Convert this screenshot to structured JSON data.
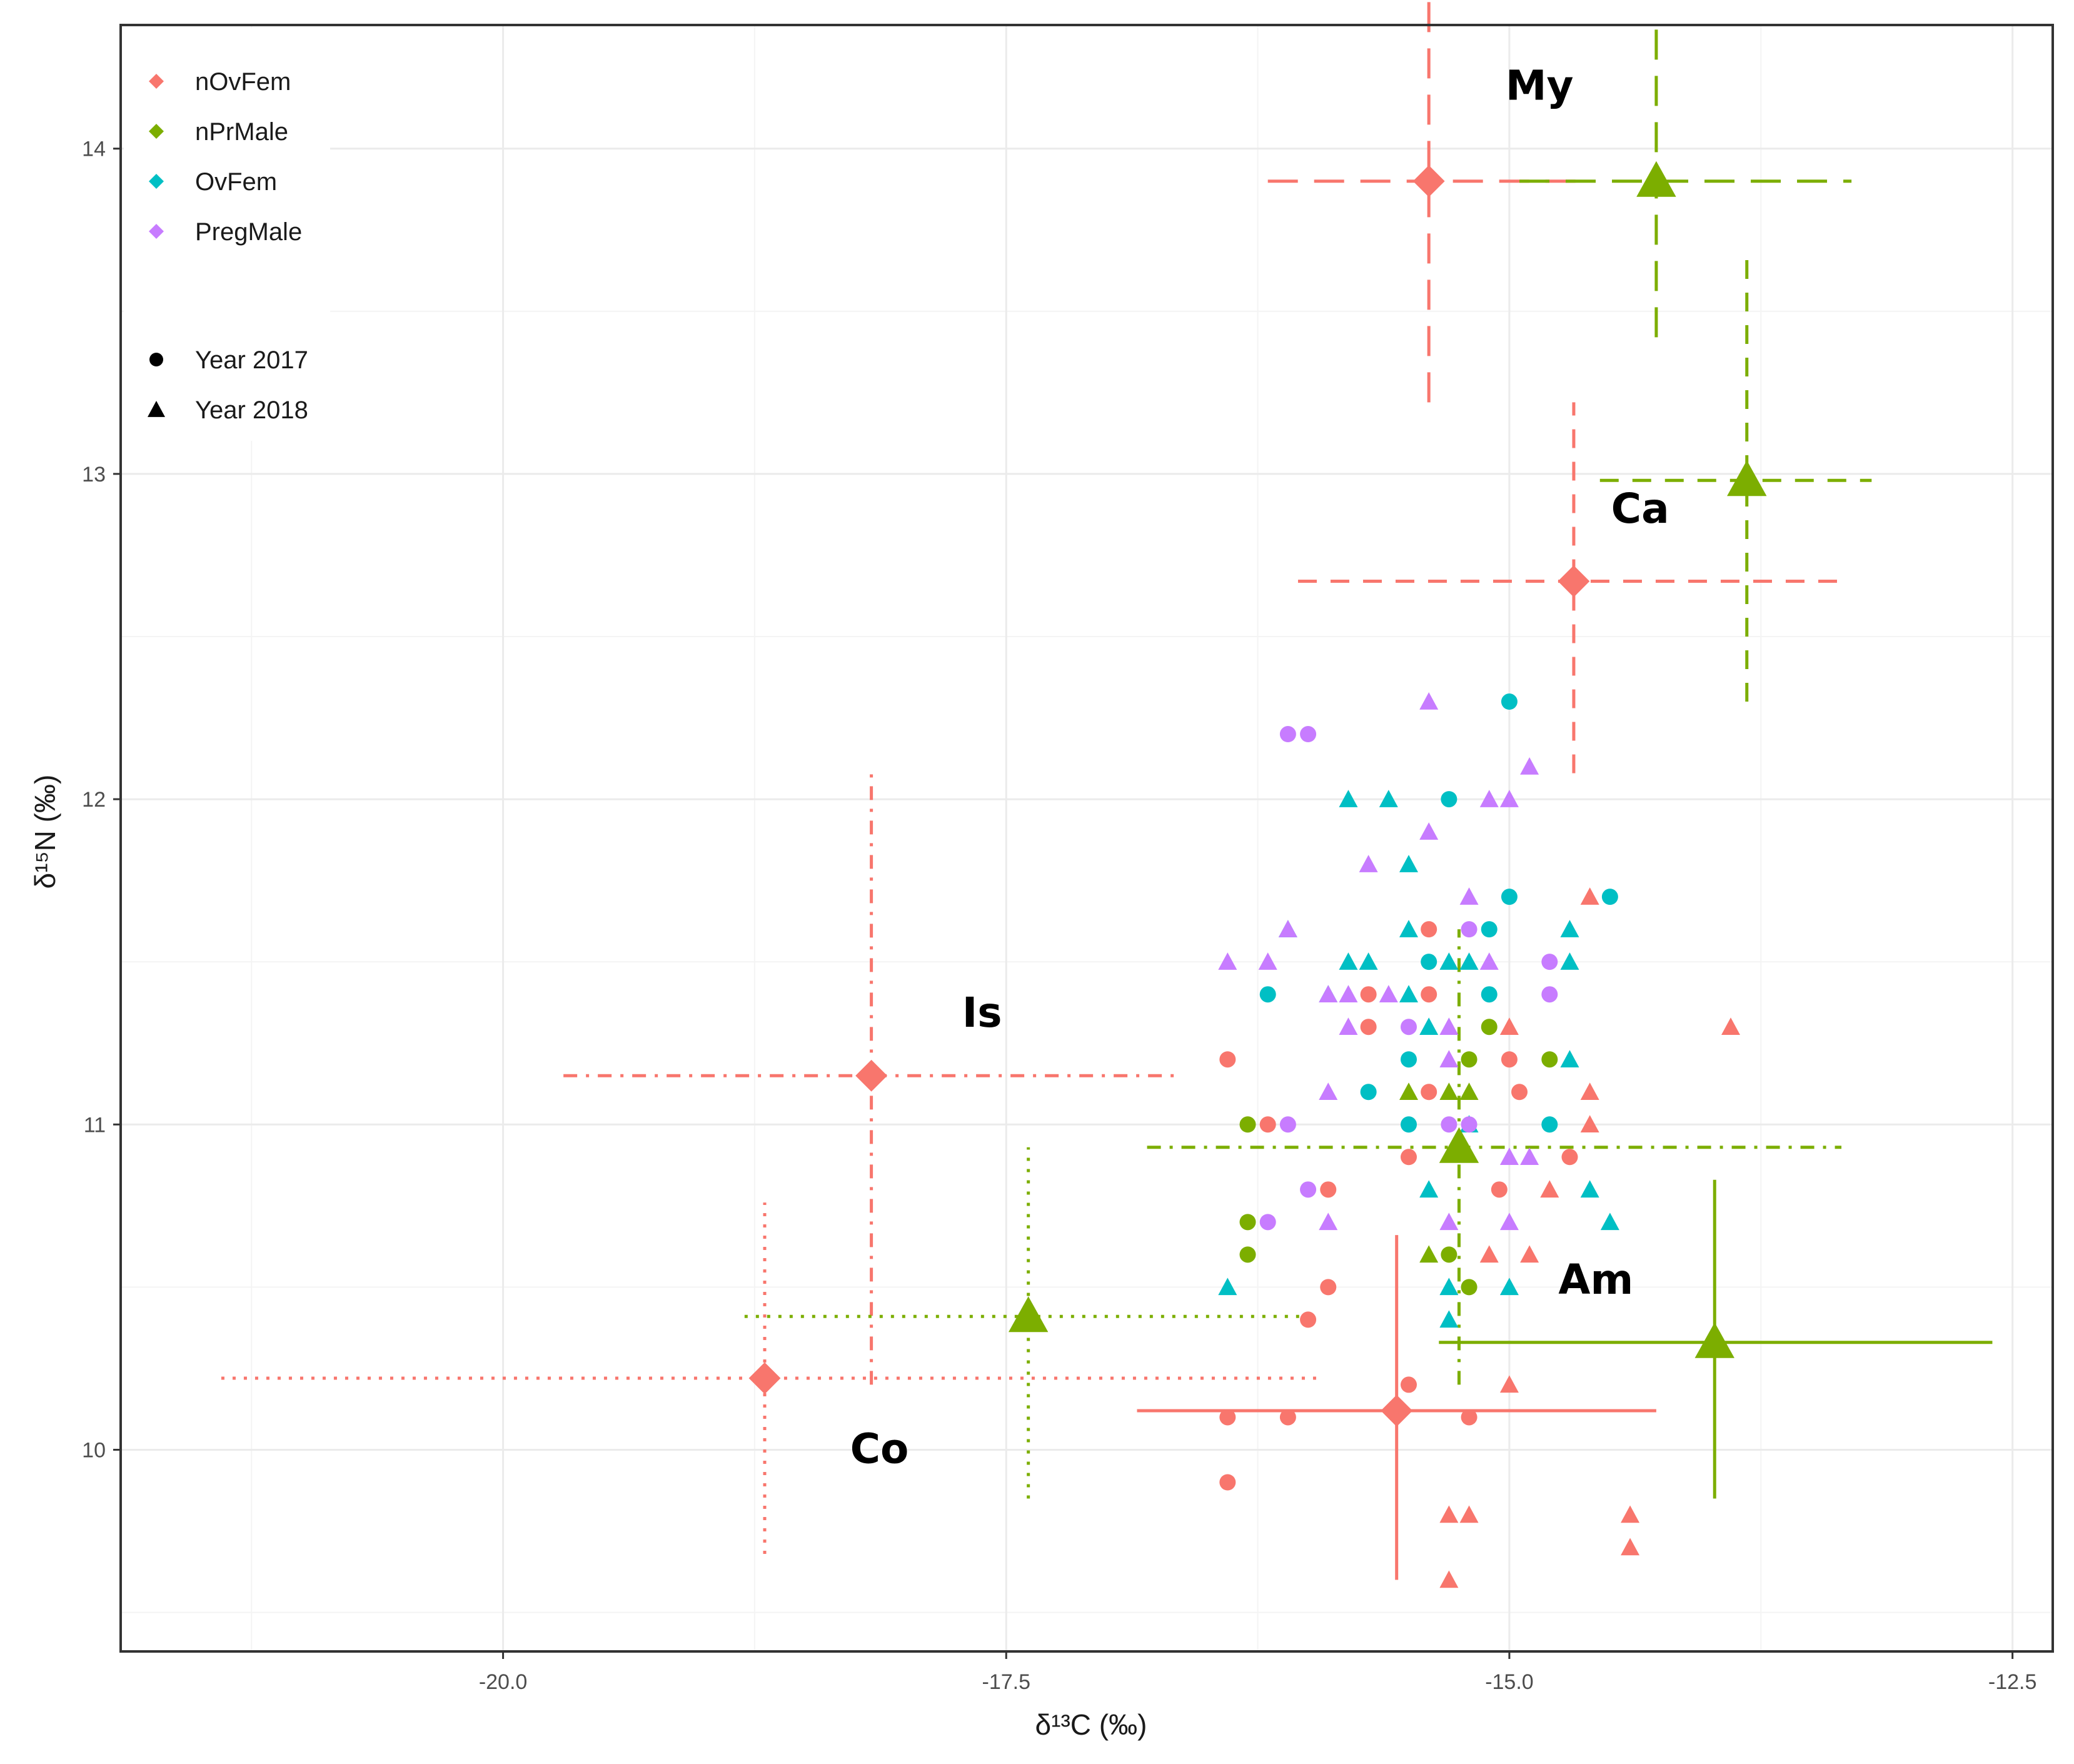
{
  "chart_data": {
    "type": "scatter",
    "title": "",
    "xlabel": "δ¹³C (‰)",
    "ylabel": "δ¹⁵N (‰)",
    "xlim": [
      -21.9,
      -12.3
    ],
    "ylim": [
      9.38,
      14.38
    ],
    "x_ticks": [
      -20.0,
      -17.5,
      -15.0,
      -12.5
    ],
    "x_tick_labels": [
      "-20.0",
      "-17.5",
      "-15.0",
      "-12.5"
    ],
    "y_ticks": [
      10,
      11,
      12,
      13,
      14
    ],
    "y_tick_labels": [
      "10",
      "11",
      "12",
      "13",
      "14"
    ],
    "grid": true,
    "legend_position": "top-left",
    "colors": {
      "nOvFem": "#F8766D",
      "nPrMale": "#7CAE00",
      "OvFem": "#00BFC4",
      "PregMale": "#C77CFF"
    },
    "legend": {
      "groups": [
        {
          "label": "nOvFem",
          "color": "#F8766D"
        },
        {
          "label": "nPrMale",
          "color": "#7CAE00"
        },
        {
          "label": "OvFem",
          "color": "#00BFC4"
        },
        {
          "label": "PregMale",
          "color": "#C77CFF"
        }
      ],
      "shapes": [
        {
          "label": "Year 2017",
          "shape": "circle"
        },
        {
          "label": "Year 2018",
          "shape": "triangle"
        }
      ]
    },
    "group_labels": [
      {
        "text": "My",
        "x": -14.85,
        "y": 14.15
      },
      {
        "text": "Ca",
        "x": -14.35,
        "y": 12.85
      },
      {
        "text": "Is",
        "x": -17.62,
        "y": 11.3
      },
      {
        "text": "Am",
        "x": -14.57,
        "y": 10.48
      },
      {
        "text": "Co",
        "x": -18.13,
        "y": 9.96
      }
    ],
    "means": [
      {
        "site": "My",
        "group": "nOvFem",
        "year": 2017,
        "x": -15.4,
        "y": 13.9,
        "xmin": -16.2,
        "xmax": -14.6,
        "ymin": 13.22,
        "ymax": 14.58,
        "linestyle": "longdash"
      },
      {
        "site": "My",
        "group": "nPrMale",
        "year": 2018,
        "x": -14.27,
        "y": 13.9,
        "xmin": -14.95,
        "xmax": -13.3,
        "ymin": 13.42,
        "ymax": 14.4,
        "linestyle": "longdash"
      },
      {
        "site": "Ca",
        "group": "nOvFem",
        "year": 2017,
        "x": -14.68,
        "y": 12.67,
        "xmin": -16.05,
        "xmax": -13.35,
        "ymin": 12.08,
        "ymax": 13.22,
        "linestyle": "dashed"
      },
      {
        "site": "Ca",
        "group": "nPrMale",
        "year": 2018,
        "x": -13.82,
        "y": 12.98,
        "xmin": -14.55,
        "xmax": -13.2,
        "ymin": 12.3,
        "ymax": 13.66,
        "linestyle": "dashed"
      },
      {
        "site": "Is",
        "group": "nOvFem",
        "year": 2017,
        "x": -18.17,
        "y": 11.15,
        "xmin": -19.7,
        "xmax": -16.65,
        "ymin": 10.2,
        "ymax": 12.1,
        "linestyle": "dotdash"
      },
      {
        "site": "Is",
        "group": "nPrMale",
        "year": 2018,
        "x": -15.25,
        "y": 10.93,
        "xmin": -16.8,
        "xmax": -13.35,
        "ymin": 10.2,
        "ymax": 11.6,
        "linestyle": "dotdash"
      },
      {
        "site": "Am",
        "group": "nOvFem",
        "year": 2017,
        "x": -15.56,
        "y": 10.12,
        "xmin": -16.85,
        "xmax": -14.27,
        "ymin": 9.6,
        "ymax": 10.66,
        "linestyle": "solid"
      },
      {
        "site": "Am",
        "group": "nPrMale",
        "year": 2018,
        "x": -13.98,
        "y": 10.33,
        "xmin": -15.35,
        "xmax": -12.6,
        "ymin": 9.85,
        "ymax": 10.83,
        "linestyle": "solid"
      },
      {
        "site": "Co",
        "group": "nOvFem",
        "year": 2017,
        "x": -18.7,
        "y": 10.22,
        "xmin": -21.4,
        "xmax": -15.95,
        "ymin": 9.68,
        "ymax": 10.76,
        "linestyle": "dotted"
      },
      {
        "site": "Co",
        "group": "nPrMale",
        "year": 2018,
        "x": -17.39,
        "y": 10.41,
        "xmin": -18.8,
        "xmax": -16.03,
        "ymin": 9.85,
        "ymax": 10.93,
        "linestyle": "dotted"
      }
    ],
    "series": [
      {
        "name": "nOvFem",
        "color": "#F8766D",
        "points": [
          {
            "x": -16.4,
            "y": 11.2,
            "year": 2017
          },
          {
            "x": -16.2,
            "y": 11.0,
            "year": 2017
          },
          {
            "x": -15.9,
            "y": 10.8,
            "year": 2017
          },
          {
            "x": -15.7,
            "y": 11.4,
            "year": 2017
          },
          {
            "x": -15.7,
            "y": 11.3,
            "year": 2017
          },
          {
            "x": -15.4,
            "y": 11.6,
            "year": 2017
          },
          {
            "x": -15.4,
            "y": 11.4,
            "year": 2017
          },
          {
            "x": -15.4,
            "y": 11.1,
            "year": 2017
          },
          {
            "x": -15.0,
            "y": 11.2,
            "year": 2017
          },
          {
            "x": -14.95,
            "y": 11.1,
            "year": 2017
          },
          {
            "x": -15.05,
            "y": 10.8,
            "year": 2017
          },
          {
            "x": -14.7,
            "y": 10.9,
            "year": 2017
          },
          {
            "x": -15.9,
            "y": 10.5,
            "year": 2017
          },
          {
            "x": -16.0,
            "y": 10.4,
            "year": 2017
          },
          {
            "x": -15.5,
            "y": 10.9,
            "year": 2017
          },
          {
            "x": -15.5,
            "y": 10.2,
            "year": 2017
          },
          {
            "x": -16.4,
            "y": 10.1,
            "year": 2017
          },
          {
            "x": -16.1,
            "y": 10.1,
            "year": 2017
          },
          {
            "x": -15.2,
            "y": 10.1,
            "year": 2017
          },
          {
            "x": -16.4,
            "y": 9.9,
            "year": 2017
          },
          {
            "x": -14.6,
            "y": 11.7,
            "year": 2018
          },
          {
            "x": -13.9,
            "y": 11.3,
            "year": 2018
          },
          {
            "x": -15.0,
            "y": 11.3,
            "year": 2018
          },
          {
            "x": -14.6,
            "y": 11.1,
            "year": 2018
          },
          {
            "x": -14.6,
            "y": 11.0,
            "year": 2018
          },
          {
            "x": -14.8,
            "y": 10.8,
            "year": 2018
          },
          {
            "x": -15.1,
            "y": 10.6,
            "year": 2018
          },
          {
            "x": -14.9,
            "y": 10.6,
            "year": 2018
          },
          {
            "x": -15.0,
            "y": 10.2,
            "year": 2018
          },
          {
            "x": -15.3,
            "y": 9.8,
            "year": 2018
          },
          {
            "x": -15.2,
            "y": 9.8,
            "year": 2018
          },
          {
            "x": -15.3,
            "y": 9.6,
            "year": 2018
          },
          {
            "x": -14.4,
            "y": 9.8,
            "year": 2018
          },
          {
            "x": -14.4,
            "y": 9.7,
            "year": 2018
          }
        ]
      },
      {
        "name": "nPrMale",
        "color": "#7CAE00",
        "points": [
          {
            "x": -16.3,
            "y": 11.0,
            "year": 2017
          },
          {
            "x": -15.1,
            "y": 11.3,
            "year": 2017
          },
          {
            "x": -14.8,
            "y": 11.2,
            "year": 2017
          },
          {
            "x": -15.2,
            "y": 11.2,
            "year": 2017
          },
          {
            "x": -16.3,
            "y": 10.7,
            "year": 2017
          },
          {
            "x": -16.3,
            "y": 10.6,
            "year": 2017
          },
          {
            "x": -15.3,
            "y": 10.6,
            "year": 2017
          },
          {
            "x": -15.2,
            "y": 10.5,
            "year": 2017
          },
          {
            "x": -15.5,
            "y": 11.1,
            "year": 2018
          },
          {
            "x": -15.3,
            "y": 11.1,
            "year": 2018
          },
          {
            "x": -15.2,
            "y": 11.1,
            "year": 2018
          },
          {
            "x": -15.4,
            "y": 10.6,
            "year": 2018
          }
        ]
      },
      {
        "name": "OvFem",
        "color": "#00BFC4",
        "points": [
          {
            "x": -15.0,
            "y": 12.3,
            "year": 2017
          },
          {
            "x": -15.3,
            "y": 12.0,
            "year": 2017
          },
          {
            "x": -15.0,
            "y": 11.7,
            "year": 2017
          },
          {
            "x": -14.5,
            "y": 11.7,
            "year": 2017
          },
          {
            "x": -15.1,
            "y": 11.6,
            "year": 2017
          },
          {
            "x": -15.4,
            "y": 11.5,
            "year": 2017
          },
          {
            "x": -16.2,
            "y": 11.4,
            "year": 2017
          },
          {
            "x": -15.1,
            "y": 11.4,
            "year": 2017
          },
          {
            "x": -15.5,
            "y": 11.2,
            "year": 2017
          },
          {
            "x": -15.7,
            "y": 11.1,
            "year": 2017
          },
          {
            "x": -15.5,
            "y": 11.0,
            "year": 2017
          },
          {
            "x": -14.8,
            "y": 11.0,
            "year": 2017
          },
          {
            "x": -15.8,
            "y": 12.0,
            "year": 2018
          },
          {
            "x": -15.6,
            "y": 12.0,
            "year": 2018
          },
          {
            "x": -15.5,
            "y": 11.8,
            "year": 2018
          },
          {
            "x": -16.1,
            "y": 11.6,
            "year": 2018
          },
          {
            "x": -15.5,
            "y": 11.6,
            "year": 2018
          },
          {
            "x": -14.7,
            "y": 11.6,
            "year": 2018
          },
          {
            "x": -15.8,
            "y": 11.5,
            "year": 2018
          },
          {
            "x": -15.7,
            "y": 11.5,
            "year": 2018
          },
          {
            "x": -15.3,
            "y": 11.5,
            "year": 2018
          },
          {
            "x": -15.2,
            "y": 11.5,
            "year": 2018
          },
          {
            "x": -14.7,
            "y": 11.5,
            "year": 2018
          },
          {
            "x": -15.9,
            "y": 11.4,
            "year": 2018
          },
          {
            "x": -15.5,
            "y": 11.4,
            "year": 2018
          },
          {
            "x": -15.4,
            "y": 11.3,
            "year": 2018
          },
          {
            "x": -14.7,
            "y": 11.2,
            "year": 2018
          },
          {
            "x": -15.2,
            "y": 11.0,
            "year": 2018
          },
          {
            "x": -15.4,
            "y": 10.8,
            "year": 2018
          },
          {
            "x": -14.6,
            "y": 10.8,
            "year": 2018
          },
          {
            "x": -14.5,
            "y": 10.7,
            "year": 2018
          },
          {
            "x": -16.4,
            "y": 10.5,
            "year": 2018
          },
          {
            "x": -15.3,
            "y": 10.5,
            "year": 2018
          },
          {
            "x": -15.0,
            "y": 10.5,
            "year": 2018
          },
          {
            "x": -15.3,
            "y": 10.4,
            "year": 2018
          }
        ]
      },
      {
        "name": "PregMale",
        "color": "#C77CFF",
        "points": [
          {
            "x": -16.1,
            "y": 12.2,
            "year": 2017
          },
          {
            "x": -16.0,
            "y": 12.2,
            "year": 2017
          },
          {
            "x": -15.2,
            "y": 11.6,
            "year": 2017
          },
          {
            "x": -14.8,
            "y": 11.5,
            "year": 2017
          },
          {
            "x": -14.8,
            "y": 11.4,
            "year": 2017
          },
          {
            "x": -15.5,
            "y": 11.3,
            "year": 2017
          },
          {
            "x": -16.1,
            "y": 11.0,
            "year": 2017
          },
          {
            "x": -16.0,
            "y": 10.8,
            "year": 2017
          },
          {
            "x": -16.2,
            "y": 10.7,
            "year": 2017
          },
          {
            "x": -15.3,
            "y": 11.0,
            "year": 2017
          },
          {
            "x": -15.2,
            "y": 11.0,
            "year": 2017
          },
          {
            "x": -15.4,
            "y": 12.3,
            "year": 2018
          },
          {
            "x": -14.9,
            "y": 12.1,
            "year": 2018
          },
          {
            "x": -15.1,
            "y": 12.0,
            "year": 2018
          },
          {
            "x": -15.0,
            "y": 12.0,
            "year": 2018
          },
          {
            "x": -15.4,
            "y": 11.9,
            "year": 2018
          },
          {
            "x": -15.7,
            "y": 11.8,
            "year": 2018
          },
          {
            "x": -15.2,
            "y": 11.7,
            "year": 2018
          },
          {
            "x": -16.1,
            "y": 11.6,
            "year": 2018
          },
          {
            "x": -16.4,
            "y": 11.5,
            "year": 2018
          },
          {
            "x": -16.2,
            "y": 11.5,
            "year": 2018
          },
          {
            "x": -15.1,
            "y": 11.5,
            "year": 2018
          },
          {
            "x": -15.9,
            "y": 11.4,
            "year": 2018
          },
          {
            "x": -15.8,
            "y": 11.4,
            "year": 2018
          },
          {
            "x": -15.6,
            "y": 11.4,
            "year": 2018
          },
          {
            "x": -15.8,
            "y": 11.3,
            "year": 2018
          },
          {
            "x": -15.3,
            "y": 11.3,
            "year": 2018
          },
          {
            "x": -15.9,
            "y": 11.1,
            "year": 2018
          },
          {
            "x": -15.3,
            "y": 11.2,
            "year": 2018
          },
          {
            "x": -15.0,
            "y": 10.9,
            "year": 2018
          },
          {
            "x": -14.9,
            "y": 10.9,
            "year": 2018
          },
          {
            "x": -15.9,
            "y": 10.7,
            "year": 2018
          },
          {
            "x": -15.3,
            "y": 10.7,
            "year": 2018
          },
          {
            "x": -15.0,
            "y": 10.7,
            "year": 2018
          }
        ]
      }
    ]
  }
}
